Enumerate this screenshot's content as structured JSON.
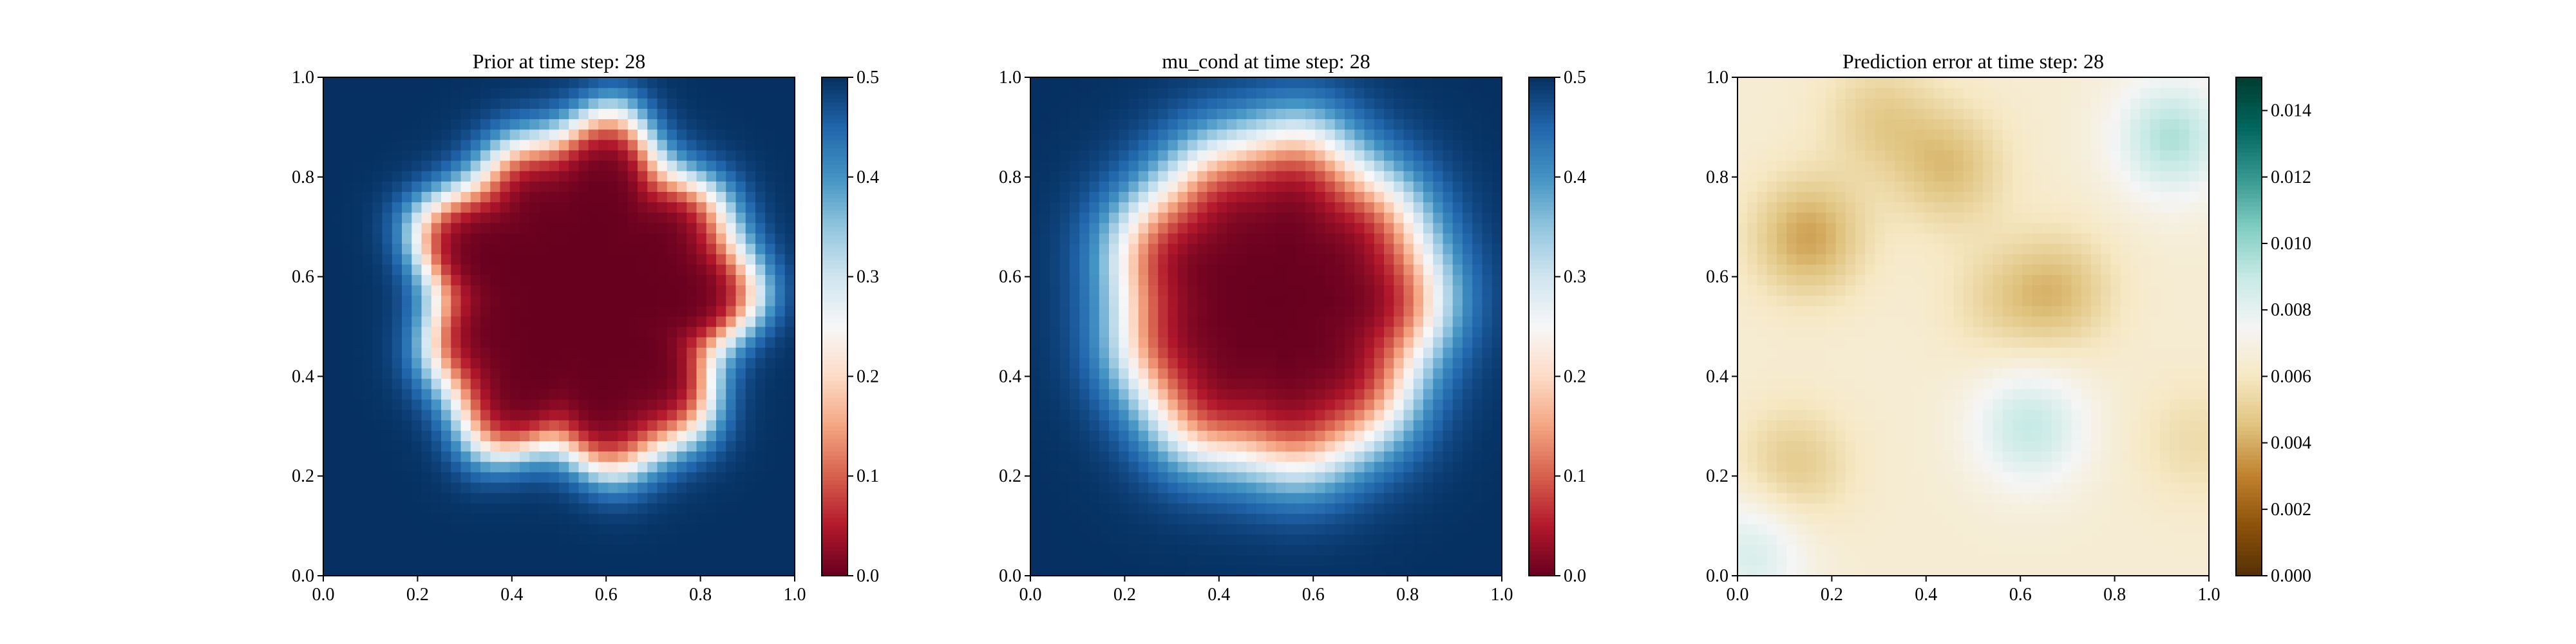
{
  "figure": {
    "background": "#ffffff"
  },
  "chart_data": [
    {
      "type": "heatmap",
      "title": "Prior at time step: 28",
      "colormap": "RdBu",
      "x_ticks": [
        "0.0",
        "0.2",
        "0.4",
        "0.6",
        "0.8",
        "1.0"
      ],
      "y_ticks": [
        "0.0",
        "0.2",
        "0.4",
        "0.6",
        "0.8",
        "1.0"
      ],
      "xlim": [
        0,
        1
      ],
      "ylim": [
        0,
        1
      ],
      "colorbar": {
        "range": [
          0.0,
          0.5
        ],
        "ticks": [
          "0.0",
          "0.1",
          "0.2",
          "0.3",
          "0.4",
          "0.5"
        ]
      },
      "field": {
        "description_free_params": true,
        "center": [
          0.55,
          0.56
        ],
        "radius": 0.34,
        "edge_width": 0.09,
        "inner_value": 0.0,
        "outer_value": 0.5
      }
    },
    {
      "type": "heatmap",
      "title": "mu_cond at time step: 28",
      "colormap": "RdBu",
      "x_ticks": [
        "0.0",
        "0.2",
        "0.4",
        "0.6",
        "0.8",
        "1.0"
      ],
      "y_ticks": [
        "0.0",
        "0.2",
        "0.4",
        "0.6",
        "0.8",
        "1.0"
      ],
      "xlim": [
        0,
        1
      ],
      "ylim": [
        0,
        1
      ],
      "colorbar": {
        "range": [
          0.0,
          0.5
        ],
        "ticks": [
          "0.0",
          "0.1",
          "0.2",
          "0.3",
          "0.4",
          "0.5"
        ]
      },
      "field": {
        "center": [
          0.52,
          0.55
        ],
        "radius": 0.33,
        "edge_width": 0.14,
        "inner_value": 0.0,
        "outer_value": 0.5
      }
    },
    {
      "type": "heatmap",
      "title": "Prediction error at time step: 28",
      "colormap": "BrBG",
      "x_ticks": [
        "0.0",
        "0.2",
        "0.4",
        "0.6",
        "0.8",
        "1.0"
      ],
      "y_ticks": [
        "0.0",
        "0.2",
        "0.4",
        "0.6",
        "0.8",
        "1.0"
      ],
      "xlim": [
        0,
        1
      ],
      "ylim": [
        0,
        1
      ],
      "colorbar": {
        "range": [
          0.0,
          0.015
        ],
        "ticks": [
          "0.000",
          "0.002",
          "0.004",
          "0.006",
          "0.008",
          "0.010",
          "0.012",
          "0.014"
        ]
      },
      "field": {
        "base_value": 0.0065,
        "blobs": [
          {
            "x": 0.15,
            "y": 0.68,
            "value": 0.0038
          },
          {
            "x": 0.45,
            "y": 0.82,
            "value": 0.0045
          },
          {
            "x": 0.3,
            "y": 0.92,
            "value": 0.005
          },
          {
            "x": 0.68,
            "y": 0.57,
            "value": 0.0045
          },
          {
            "x": 0.12,
            "y": 0.22,
            "value": 0.0048
          },
          {
            "x": 0.97,
            "y": 0.27,
            "value": 0.0055
          },
          {
            "x": 0.92,
            "y": 0.88,
            "value": 0.0095
          },
          {
            "x": 0.62,
            "y": 0.3,
            "value": 0.009
          },
          {
            "x": 0.03,
            "y": 0.05,
            "value": 0.0085
          },
          {
            "x": 0.55,
            "y": 0.55,
            "value": 0.0055
          }
        ]
      }
    }
  ]
}
